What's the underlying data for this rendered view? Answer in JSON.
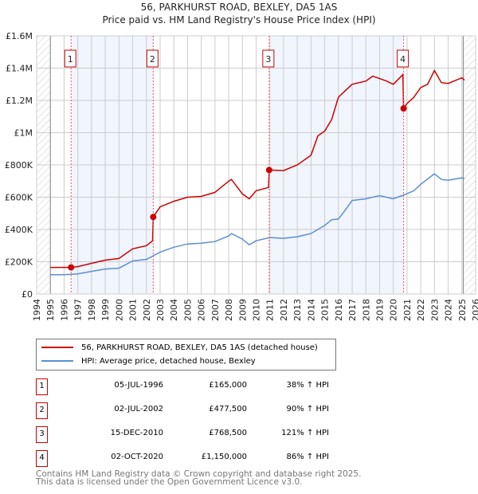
{
  "chart_data": {
    "type": "line",
    "title": "56, PARKHURST ROAD, BEXLEY, DA5 1AS",
    "subtitle": "Price paid vs. HM Land Registry's House Price Index (HPI)",
    "xlim": [
      1994,
      2026
    ],
    "ylim": [
      0,
      1600000
    ],
    "x_ticks": [
      "1994",
      "1995",
      "1996",
      "1997",
      "1998",
      "1999",
      "2000",
      "2001",
      "2002",
      "2003",
      "2004",
      "2005",
      "2006",
      "2007",
      "2008",
      "2009",
      "2010",
      "2011",
      "2012",
      "2013",
      "2014",
      "2015",
      "2016",
      "2017",
      "2018",
      "2019",
      "2020",
      "2021",
      "2022",
      "2023",
      "2024",
      "2025",
      "2026"
    ],
    "y_ticks": [
      {
        "v": 0,
        "label": "£0"
      },
      {
        "v": 200000,
        "label": "£200K"
      },
      {
        "v": 400000,
        "label": "£400K"
      },
      {
        "v": 600000,
        "label": "£600K"
      },
      {
        "v": 800000,
        "label": "£800K"
      },
      {
        "v": 1000000,
        "label": "£1M"
      },
      {
        "v": 1200000,
        "label": "£1.2M"
      },
      {
        "v": 1400000,
        "label": "£1.4M"
      },
      {
        "v": 1600000,
        "label": "£1.6M"
      }
    ],
    "grid": true,
    "series": [
      {
        "name": "56, PARKHURST ROAD, BEXLEY, DA5 1AS (detached house)",
        "color": "#cc0000",
        "x": [
          1995,
          1996.5,
          1997,
          1998,
          1999,
          2000,
          2001,
          2002,
          2002.45,
          2002.5,
          2003,
          2004,
          2005,
          2006,
          2007,
          2008,
          2008.2,
          2009,
          2009.5,
          2010,
          2010.9,
          2010.95,
          2012,
          2013,
          2014,
          2014.5,
          2015,
          2015.5,
          2016,
          2016.5,
          2017,
          2018,
          2018.5,
          2019.5,
          2020,
          2020.7,
          2020.75,
          2021,
          2021.5,
          2022,
          2022.5,
          2023,
          2023.5,
          2024,
          2025,
          2025.2
        ],
        "y": [
          165000,
          165000,
          170000,
          190000,
          210000,
          220000,
          280000,
          300000,
          330000,
          477500,
          540000,
          575000,
          600000,
          605000,
          630000,
          700000,
          710000,
          620000,
          590000,
          640000,
          660000,
          768500,
          765000,
          800000,
          860000,
          980000,
          1010000,
          1080000,
          1220000,
          1260000,
          1300000,
          1320000,
          1350000,
          1320000,
          1300000,
          1360000,
          1150000,
          1180000,
          1220000,
          1280000,
          1300000,
          1385000,
          1310000,
          1305000,
          1340000,
          1325000
        ]
      },
      {
        "name": "HPI: Average price, detached house, Bexley",
        "color": "#5b8fd4",
        "x": [
          1995,
          1996,
          1997,
          1998,
          1999,
          2000,
          2001,
          2002,
          2003,
          2004,
          2005,
          2006,
          2007,
          2008,
          2008.2,
          2009,
          2009.5,
          2010,
          2011,
          2012,
          2013,
          2014,
          2015,
          2015.5,
          2016,
          2016.5,
          2017,
          2018,
          2019,
          2020,
          2020.8,
          2021.5,
          2022,
          2023,
          2023.5,
          2024,
          2025,
          2025.2
        ],
        "y": [
          120000,
          120000,
          125000,
          140000,
          155000,
          160000,
          205000,
          215000,
          260000,
          290000,
          310000,
          315000,
          325000,
          360000,
          375000,
          340000,
          305000,
          330000,
          350000,
          345000,
          355000,
          375000,
          425000,
          460000,
          465000,
          520000,
          580000,
          590000,
          610000,
          590000,
          615000,
          640000,
          680000,
          745000,
          710000,
          705000,
          720000,
          715000
        ]
      }
    ],
    "sales": [
      {
        "n": "1",
        "x": 1996.51,
        "y": 165000,
        "date": "05-JUL-1996",
        "price": "£165,000",
        "hpi": "38% ↑ HPI"
      },
      {
        "n": "2",
        "x": 2002.5,
        "y": 477500,
        "date": "02-JUL-2002",
        "price": "£477,500",
        "hpi": "90% ↑ HPI"
      },
      {
        "n": "3",
        "x": 2010.95,
        "y": 768500,
        "date": "15-DEC-2010",
        "price": "£768,500",
        "hpi": "121% ↑ HPI"
      },
      {
        "n": "4",
        "x": 2020.75,
        "y": 1150000,
        "date": "02-OCT-2020",
        "price": "£1,150,000",
        "hpi": "86% ↑ HPI"
      }
    ]
  },
  "footer": [
    "Contains HM Land Registry data © Crown copyright and database right 2025.",
    "This data is licensed under the Open Government Licence v3.0."
  ]
}
